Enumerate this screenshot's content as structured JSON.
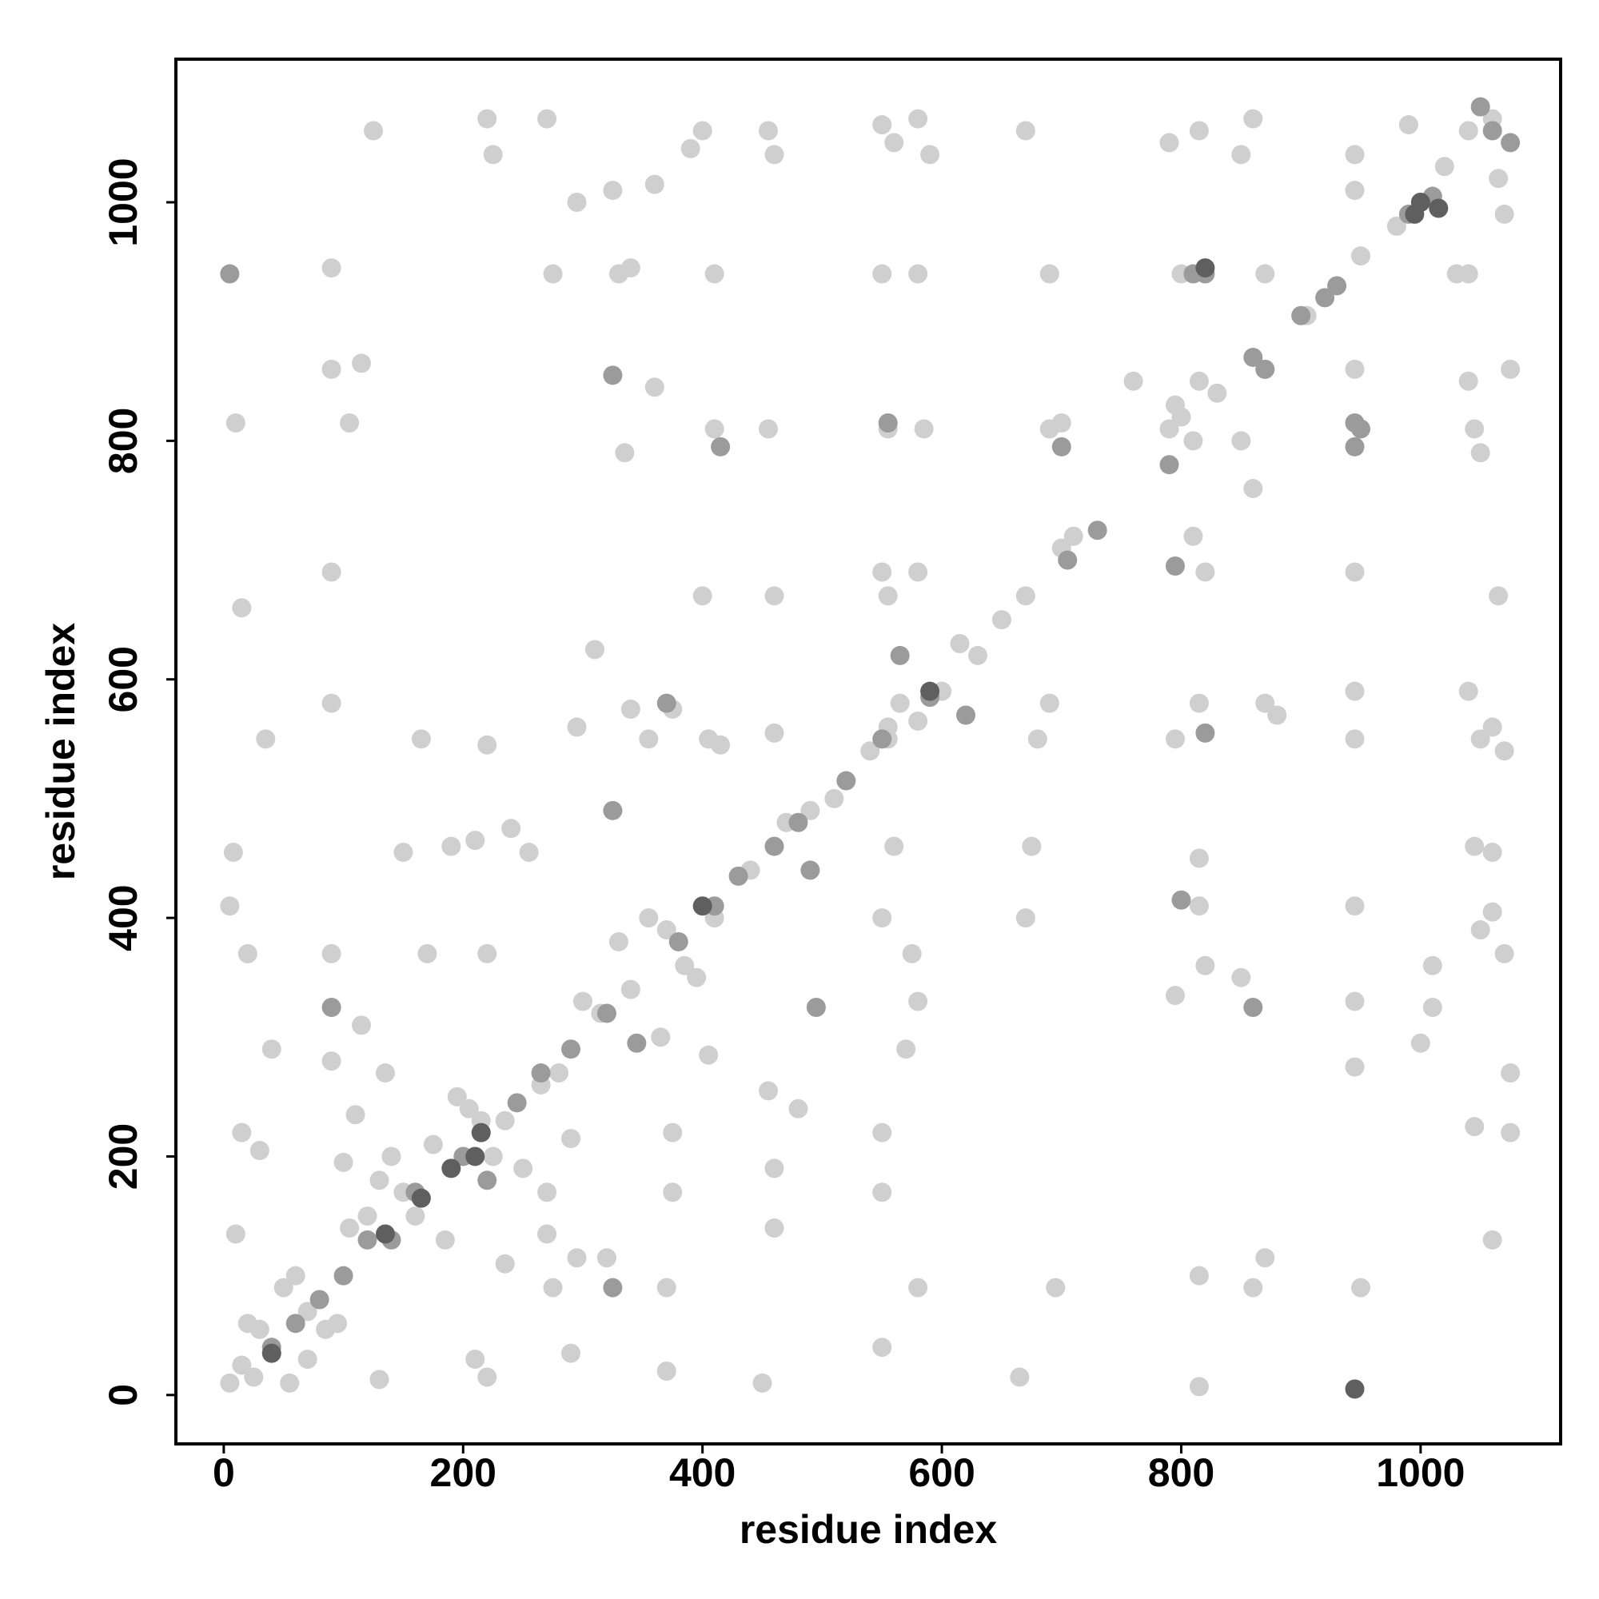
{
  "chart_data": {
    "type": "scatter",
    "x_label": "residue index",
    "y_label": "residue index",
    "xlim": [
      -40,
      1117
    ],
    "ylim": [
      -41,
      1120
    ],
    "xticks": [
      0,
      200,
      400,
      600,
      800,
      1000
    ],
    "yticks": [
      0,
      200,
      400,
      600,
      800,
      1000
    ],
    "series": [
      {
        "color": "#cfcfcf",
        "x": [
          5,
          15,
          20,
          30,
          50,
          60,
          70,
          85,
          95,
          105,
          120,
          130,
          140,
          150,
          160,
          175,
          185,
          195,
          205,
          215,
          225,
          235,
          250,
          265,
          280,
          300,
          315,
          330,
          340,
          355,
          370,
          385,
          395,
          410,
          440,
          470,
          490,
          510,
          540,
          555,
          565,
          580,
          600,
          615,
          630,
          650,
          670,
          700,
          710,
          760,
          790,
          800,
          815,
          830,
          850,
          860,
          870,
          905,
          950,
          980,
          1000,
          1020,
          1040,
          1060,
          1065,
          10,
          8,
          5,
          15,
          20,
          15,
          10,
          35,
          40,
          30,
          90,
          90,
          90,
          90,
          90,
          90,
          105,
          115,
          125,
          115,
          110,
          135,
          150,
          165,
          170,
          190,
          210,
          220,
          220,
          220,
          225,
          240,
          255,
          270,
          275,
          295,
          295,
          310,
          325,
          330,
          340,
          335,
          340,
          355,
          360,
          360,
          375,
          375,
          375,
          370,
          390,
          400,
          400,
          405,
          410,
          410,
          415,
          455,
          460,
          455,
          460,
          460,
          455,
          460,
          460,
          450,
          550,
          560,
          550,
          555,
          550,
          555,
          555,
          560,
          550,
          550,
          550,
          550,
          580,
          590,
          580,
          585,
          580,
          575,
          580,
          580,
          570,
          670,
          690,
          690,
          700,
          690,
          680,
          675,
          670,
          665,
          695,
          790,
          815,
          800,
          795,
          810,
          810,
          820,
          815,
          795,
          815,
          815,
          820,
          795,
          815,
          815,
          850,
          850,
          860,
          860,
          870,
          870,
          880,
          870,
          945,
          945,
          945,
          945,
          945,
          945,
          945,
          945,
          945,
          950,
          990,
          1000,
          1010,
          1010,
          1030,
          1040,
          1040,
          1045,
          1050,
          1040,
          1050,
          1060,
          1045,
          1060,
          1050,
          1060,
          1045,
          1060,
          1065,
          1070,
          1070,
          1075,
          1075,
          1075,
          1070,
          55,
          25,
          70,
          100,
          130,
          210,
          220,
          290,
          295,
          270,
          275,
          320,
          370,
          365,
          405,
          480,
          290,
          270,
          235
        ],
        "values": [
          10,
          25,
          60,
          55,
          90,
          100,
          70,
          55,
          60,
          140,
          150,
          180,
          200,
          170,
          150,
          210,
          130,
          250,
          240,
          230,
          200,
          230,
          190,
          260,
          270,
          330,
          320,
          380,
          340,
          400,
          390,
          360,
          350,
          400,
          440,
          480,
          490,
          500,
          540,
          560,
          580,
          565,
          590,
          630,
          620,
          650,
          670,
          710,
          720,
          850,
          810,
          820,
          850,
          840,
          800,
          760,
          860,
          905,
          955,
          980,
          1000,
          1030,
          1060,
          1070,
          1020,
          815,
          455,
          410,
          660,
          370,
          220,
          135,
          550,
          290,
          205,
          945,
          860,
          690,
          580,
          370,
          280,
          815,
          865,
          1060,
          310,
          235,
          270,
          455,
          550,
          370,
          460,
          465,
          545,
          370,
          1070,
          1040,
          475,
          455,
          1070,
          940,
          1000,
          560,
          625,
          1010,
          940,
          945,
          790,
          575,
          550,
          845,
          1015,
          575,
          220,
          170,
          20,
          1045,
          1060,
          670,
          550,
          940,
          810,
          545,
          1060,
          1040,
          810,
          670,
          555,
          255,
          190,
          140,
          10,
          1065,
          1050,
          940,
          810,
          690,
          670,
          550,
          460,
          400,
          220,
          170,
          40,
          1070,
          1040,
          940,
          810,
          690,
          370,
          330,
          90,
          290,
          1060,
          940,
          810,
          815,
          580,
          550,
          460,
          400,
          15,
          90,
          1050,
          1060,
          940,
          830,
          800,
          720,
          690,
          580,
          550,
          450,
          410,
          360,
          335,
          100,
          7,
          1040,
          350,
          1070,
          90,
          940,
          580,
          570,
          115,
          1040,
          1010,
          860,
          690,
          590,
          550,
          410,
          330,
          275,
          90,
          1065,
          295,
          360,
          325,
          940,
          940,
          850,
          810,
          790,
          590,
          550,
          560,
          460,
          455,
          390,
          405,
          225,
          130,
          670,
          540,
          370,
          860,
          270,
          220,
          990,
          10,
          15,
          30,
          195,
          13,
          30,
          15,
          35,
          115,
          135,
          90,
          115,
          90,
          300,
          285,
          240,
          215,
          170,
          110
        ]
      },
      {
        "color": "#9b9b9b",
        "x": [
          5,
          90,
          325,
          325,
          325,
          370,
          415,
          495,
          490,
          555,
          565,
          590,
          620,
          700,
          790,
          795,
          800,
          810,
          820,
          860,
          900,
          920,
          945,
          945,
          950,
          860,
          870,
          1050,
          1075,
          1060,
          40,
          60,
          80,
          100,
          120,
          140,
          160,
          200,
          220,
          245,
          265,
          290,
          320,
          345,
          380,
          410,
          430,
          460,
          480,
          520,
          550,
          705,
          730,
          930,
          990,
          1010,
          820
        ],
        "values": [
          940,
          325,
          855,
          490,
          90,
          580,
          795,
          325,
          440,
          815,
          620,
          585,
          570,
          795,
          780,
          695,
          415,
          940,
          940,
          325,
          905,
          920,
          815,
          795,
          810,
          870,
          860,
          1080,
          1050,
          1060,
          40,
          60,
          80,
          100,
          130,
          130,
          170,
          200,
          180,
          245,
          270,
          290,
          320,
          295,
          380,
          410,
          435,
          460,
          480,
          515,
          550,
          700,
          725,
          930,
          990,
          1005,
          555
        ]
      },
      {
        "color": "#5f5f5f",
        "x": [
          40,
          135,
          165,
          190,
          210,
          215,
          400,
          590,
          945,
          1000,
          995,
          1015,
          820
        ],
        "values": [
          35,
          135,
          165,
          190,
          200,
          220,
          410,
          590,
          5,
          1000,
          990,
          995,
          945
        ]
      }
    ]
  }
}
